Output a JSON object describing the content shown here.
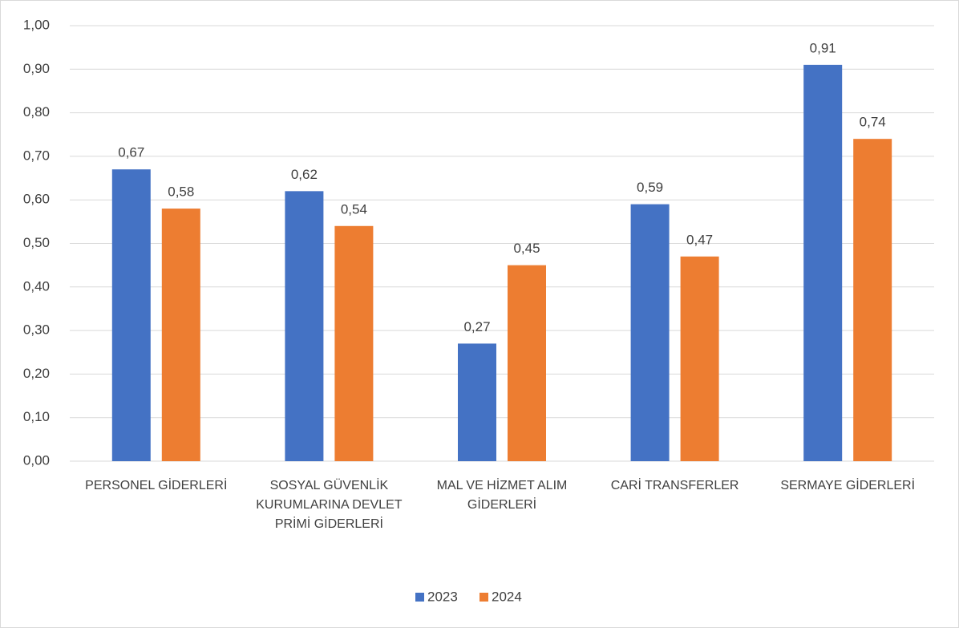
{
  "chart_data": {
    "type": "bar",
    "categories": [
      "PERSONEL GİDERLERİ",
      "SOSYAL GÜVENLİK KURUMLARINA DEVLET PRİMİ GİDERLERİ",
      "MAL VE HİZMET ALIM GİDERLERİ",
      "CARİ TRANSFERLER",
      "SERMAYE GİDERLERİ"
    ],
    "series": [
      {
        "name": "2023",
        "color": "#4472c4",
        "values": [
          0.67,
          0.62,
          0.27,
          0.59,
          0.91
        ],
        "value_labels": [
          "0,67",
          "0,62",
          "0,27",
          "0,59",
          "0,91"
        ]
      },
      {
        "name": "2024",
        "color": "#ed7d31",
        "values": [
          0.58,
          0.54,
          0.45,
          0.47,
          0.74
        ],
        "value_labels": [
          "0,58",
          "0,54",
          "0,45",
          "0,47",
          "0,74"
        ]
      }
    ],
    "ylim": [
      0,
      1
    ],
    "yticks": [
      {
        "value": 0,
        "label": "0,00"
      },
      {
        "value": 0.1,
        "label": "0,10"
      },
      {
        "value": 0.2,
        "label": "0,20"
      },
      {
        "value": 0.3,
        "label": "0,30"
      },
      {
        "value": 0.4,
        "label": "0,40"
      },
      {
        "value": 0.5,
        "label": "0,50"
      },
      {
        "value": 0.6,
        "label": "0,60"
      },
      {
        "value": 0.7,
        "label": "0,70"
      },
      {
        "value": 0.8,
        "label": "0,80"
      },
      {
        "value": 0.9,
        "label": "0,90"
      },
      {
        "value": 1,
        "label": "1,00"
      }
    ],
    "grid": true,
    "legend": "bottom"
  }
}
